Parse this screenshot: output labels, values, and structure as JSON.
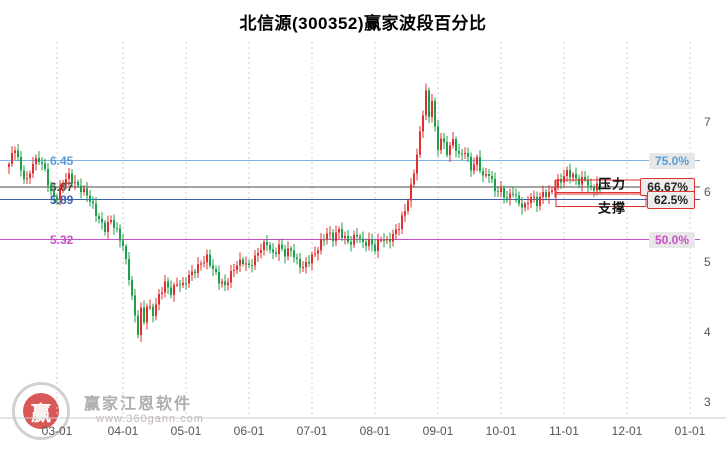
{
  "title": "北信源(300352)赢家波段百分比",
  "watermark": {
    "brand": "赢家江恩软件",
    "site": "www.360gann.com",
    "logo_char": "赢"
  },
  "colors": {
    "up": "#e03131",
    "down": "#1ca04a",
    "grid": "#cfcfcf",
    "axis_text": "#555555",
    "callout_red": "#e03030"
  },
  "chart_data": {
    "type": "candlestick",
    "title": "北信源(300352)赢家波段百分比",
    "symbol_name": "北信源",
    "symbol_code": "300352",
    "ylim": [
      3,
      7.8
    ],
    "y_ticks": [
      7,
      6,
      5,
      4,
      3
    ],
    "x_ticks": [
      {
        "label": "03-01",
        "day": 16
      },
      {
        "label": "04-01",
        "day": 38
      },
      {
        "label": "05-01",
        "day": 59
      },
      {
        "label": "06-01",
        "day": 80
      },
      {
        "label": "07-01",
        "day": 101
      },
      {
        "label": "08-01",
        "day": 122
      },
      {
        "label": "09-01",
        "day": 143
      },
      {
        "label": "10-01",
        "day": 164
      },
      {
        "label": "11-01",
        "day": 185
      },
      {
        "label": "12-01",
        "day": 206
      },
      {
        "label": "01-01",
        "day": 227
      }
    ],
    "levels": [
      {
        "price": 6.45,
        "value_label": "6.45",
        "pct_label": "75.0%",
        "line_color": "#7fb2e5",
        "text_color": "#5b9bd5",
        "pct_text_color": "#5b9bd5",
        "boxed": false,
        "value_under_candles": false
      },
      {
        "price": 6.07,
        "value_label": "6.07",
        "pct_label": "66.67%",
        "line_color": "#4a4a4a",
        "text_color": "#4a4a4a",
        "pct_text_color": "#222222",
        "boxed": true,
        "value_under_candles": true
      },
      {
        "price": 5.89,
        "value_label": "5.89",
        "pct_label": "62.5%",
        "line_color": "#3a5fad",
        "text_color": "#3a5fad",
        "pct_text_color": "#222222",
        "boxed": true,
        "value_under_candles": false
      },
      {
        "price": 5.32,
        "value_label": "5.32",
        "pct_label": "50.0%",
        "line_color": "#c94fc9",
        "text_color": "#c94fc9",
        "pct_text_color": "#c94fc9",
        "boxed": false,
        "value_under_candles": false
      }
    ],
    "annotations": [
      {
        "text": "压力",
        "price": 6.07,
        "side": "above"
      },
      {
        "text": "支撑",
        "price": 5.89,
        "side": "below"
      }
    ],
    "price_path_anchors": [
      [
        0,
        6.4
      ],
      [
        2,
        6.62
      ],
      [
        4,
        6.3
      ],
      [
        6,
        6.18
      ],
      [
        8,
        6.42
      ],
      [
        10,
        6.45
      ],
      [
        12,
        6.3
      ],
      [
        14,
        6.0
      ],
      [
        16,
        5.92
      ],
      [
        18,
        6.12
      ],
      [
        20,
        6.22
      ],
      [
        23,
        6.1
      ],
      [
        26,
        5.95
      ],
      [
        29,
        5.7
      ],
      [
        32,
        5.48
      ],
      [
        34,
        5.58
      ],
      [
        36,
        5.42
      ],
      [
        38,
        5.25
      ],
      [
        40,
        4.8
      ],
      [
        42,
        4.2
      ],
      [
        43,
        3.98
      ],
      [
        44,
        4.3
      ],
      [
        45,
        4.15
      ],
      [
        46,
        4.4
      ],
      [
        48,
        4.28
      ],
      [
        50,
        4.5
      ],
      [
        52,
        4.68
      ],
      [
        54,
        4.58
      ],
      [
        56,
        4.72
      ],
      [
        58,
        4.65
      ],
      [
        60,
        4.78
      ],
      [
        62,
        4.9
      ],
      [
        64,
        5.0
      ],
      [
        66,
        5.05
      ],
      [
        68,
        4.88
      ],
      [
        70,
        4.75
      ],
      [
        72,
        4.68
      ],
      [
        74,
        4.82
      ],
      [
        76,
        4.95
      ],
      [
        78,
        5.02
      ],
      [
        80,
        4.95
      ],
      [
        82,
        5.05
      ],
      [
        84,
        5.18
      ],
      [
        86,
        5.28
      ],
      [
        88,
        5.12
      ],
      [
        90,
        5.22
      ],
      [
        92,
        5.1
      ],
      [
        94,
        5.18
      ],
      [
        96,
        5.02
      ],
      [
        98,
        4.92
      ],
      [
        100,
        5.0
      ],
      [
        102,
        5.12
      ],
      [
        104,
        5.3
      ],
      [
        106,
        5.42
      ],
      [
        108,
        5.32
      ],
      [
        110,
        5.45
      ],
      [
        112,
        5.35
      ],
      [
        114,
        5.28
      ],
      [
        116,
        5.38
      ],
      [
        118,
        5.25
      ],
      [
        120,
        5.32
      ],
      [
        122,
        5.2
      ],
      [
        124,
        5.32
      ],
      [
        126,
        5.28
      ],
      [
        128,
        5.4
      ],
      [
        130,
        5.52
      ],
      [
        132,
        5.72
      ],
      [
        134,
        6.05
      ],
      [
        136,
        6.55
      ],
      [
        138,
        7.15
      ],
      [
        139,
        7.42
      ],
      [
        140,
        7.05
      ],
      [
        141,
        7.32
      ],
      [
        142,
        6.88
      ],
      [
        143,
        6.62
      ],
      [
        144,
        6.8
      ],
      [
        146,
        6.58
      ],
      [
        148,
        6.72
      ],
      [
        150,
        6.5
      ],
      [
        152,
        6.6
      ],
      [
        154,
        6.35
      ],
      [
        156,
        6.45
      ],
      [
        158,
        6.2
      ],
      [
        160,
        6.28
      ],
      [
        162,
        6.05
      ],
      [
        164,
        6.0
      ],
      [
        166,
        5.88
      ],
      [
        168,
        6.02
      ],
      [
        170,
        5.85
      ],
      [
        172,
        5.78
      ],
      [
        174,
        5.92
      ],
      [
        176,
        5.85
      ],
      [
        178,
        6.0
      ],
      [
        180,
        5.95
      ],
      [
        182,
        6.08
      ],
      [
        184,
        6.18
      ],
      [
        186,
        6.3
      ],
      [
        188,
        6.22
      ],
      [
        190,
        6.12
      ],
      [
        192,
        6.2
      ],
      [
        194,
        6.05
      ],
      [
        196,
        6.1
      ],
      [
        197,
        6.02
      ]
    ]
  }
}
